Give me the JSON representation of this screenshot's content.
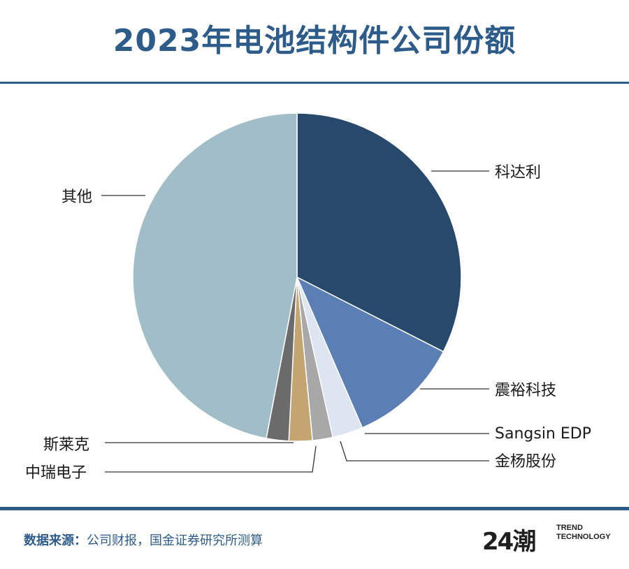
{
  "title": "2023年电池结构件公司份额",
  "footer": {
    "source_label": "数据来源：",
    "source_text": "公司财报，国金证券研究所测算"
  },
  "logo": {
    "mark": "24潮",
    "line1": "TREND",
    "line2": "TECHNOLOGY"
  },
  "chart_data": {
    "type": "pie",
    "title": "2023年电池结构件公司份额",
    "start_angle_deg": 0,
    "direction": "clockwise",
    "slices": [
      {
        "label": "科达利",
        "value": 32.5,
        "color": "#27496b"
      },
      {
        "label": "震裕科技",
        "value": 11.0,
        "color": "#5b7eb4"
      },
      {
        "label": "Sangsin EDP",
        "value": 3.0,
        "color": "#dce5f0"
      },
      {
        "label": "金杨股份",
        "value": 2.0,
        "color": "#a8a8a8"
      },
      {
        "label": "中瑞电子",
        "value": 2.3,
        "color": "#c4a571"
      },
      {
        "label": "斯莱克",
        "value": 2.2,
        "color": "#6b6b6b"
      },
      {
        "label": "其他",
        "value": 47.0,
        "color": "#a1bdc7"
      }
    ]
  }
}
